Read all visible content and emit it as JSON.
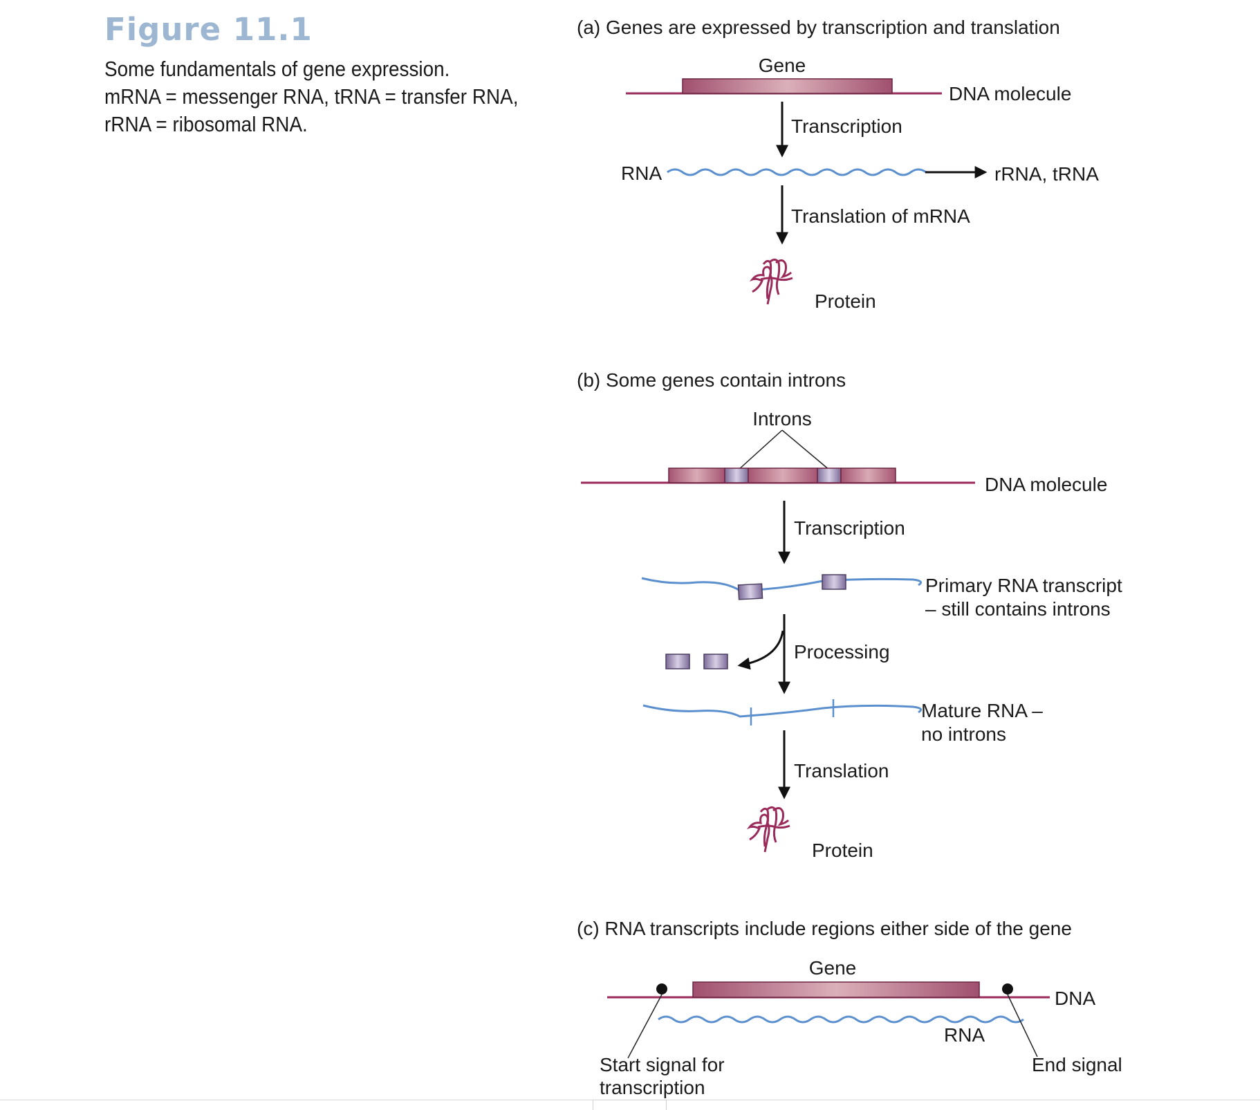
{
  "figure": {
    "title": "Figure 11.1",
    "caption_lines": [
      "Some fundamentals of gene expression.",
      "mRNA = messenger RNA, tRNA = transfer RNA,",
      "rRNA = ribosomal RNA."
    ]
  },
  "panel_a": {
    "heading": "(a)  Genes are expressed by transcription and translation",
    "gene_label": "Gene",
    "dna_label": "DNA molecule",
    "step1": "Transcription",
    "rna_label": "RNA",
    "side_product": "rRNA, tRNA",
    "step2": "Translation of mRNA",
    "protein_label": "Protein"
  },
  "panel_b": {
    "heading": "(b)  Some genes contain introns",
    "introns_label": "Introns",
    "dna_label": "DNA molecule",
    "step1": "Transcription",
    "primary_line1": "Primary RNA transcript",
    "primary_line2": "– still contains introns",
    "step2": "Processing",
    "mature_line1": "Mature RNA –",
    "mature_line2": "no introns",
    "step3": "Translation",
    "protein_label": "Protein"
  },
  "panel_c": {
    "heading": "(c)  RNA transcripts include regions either side of the gene",
    "gene_label": "Gene",
    "dna_label": "DNA",
    "rna_label": "RNA",
    "start_line1": "Start signal for",
    "start_line2": "transcription",
    "end_label": "End signal"
  },
  "colors": {
    "dna": "#9a2a5a",
    "gene": "#b0677f",
    "rna": "#5b8fce",
    "intron": "#9d8db5",
    "arrow": "#111111"
  }
}
